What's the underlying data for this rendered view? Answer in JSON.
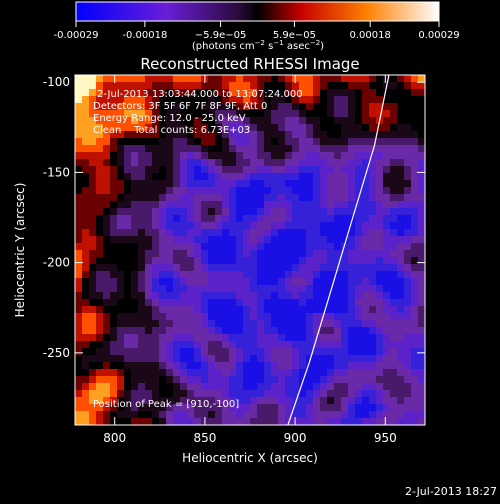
{
  "colorbar": {
    "ticks": [
      {
        "value": -0.00029,
        "label": "-0.00029"
      },
      {
        "value": -0.00018,
        "label": "-0.00018"
      },
      {
        "value": -5.9e-05,
        "label": "−5.9e−05"
      },
      {
        "value": 5.9e-05,
        "label": "5.9e−05"
      },
      {
        "value": 0.00018,
        "label": "0.00018"
      },
      {
        "value": 0.00029,
        "label": "0.00029"
      }
    ],
    "min": -0.00029,
    "max": 0.00029,
    "units": {
      "prefix": "(photons cm",
      "exp1": "−2",
      "mid": " s",
      "exp2": "−1",
      "mid2": " asec",
      "exp3": "−2",
      "suffix": ")"
    }
  },
  "chart_data": {
    "type": "heatmap",
    "title": "Reconstructed RHESSI Image",
    "xlabel": "Heliocentric X (arcsec)",
    "ylabel": "Heliocentric Y (arcsec)",
    "xlim": [
      778,
      972
    ],
    "ylim": [
      -290,
      -96
    ],
    "xticks": [
      800,
      850,
      900,
      950
    ],
    "yticks": [
      -100,
      -150,
      -200,
      -250
    ],
    "limb_curve": [
      [
        896,
        -290
      ],
      [
        908,
        -255
      ],
      [
        920,
        -215
      ],
      [
        932,
        -175
      ],
      [
        944,
        -135
      ],
      [
        952,
        -96
      ]
    ],
    "annotations": [
      "2-Jul-2013 13:03:44.000 to 13:07:24.000",
      "Detectors: 3F 5F 6F 7F 8F 9F, Att 0",
      "Energy Range: 12.0 - 25.0 keV",
      "Clean    Total counts: 6.73E+03"
    ],
    "peak_label": "Position of Peak = [910,-100]"
  },
  "footer": {
    "timestamp": "2-Jul-2013 18:27"
  }
}
